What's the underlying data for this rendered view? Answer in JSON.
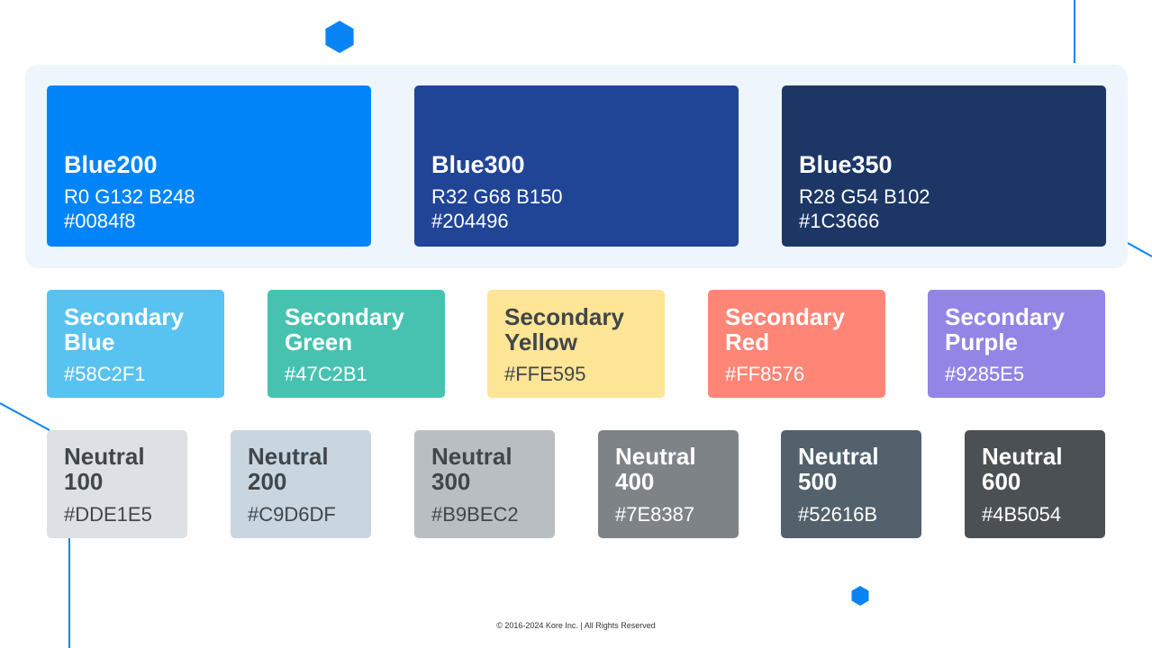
{
  "primary": [
    {
      "name": "Blue200",
      "rgb": "R0 G132 B248",
      "hex": "#0084f8"
    },
    {
      "name": "Blue300",
      "rgb": "R32 G68 B150",
      "hex": "#204496"
    },
    {
      "name": "Blue350",
      "rgb": "R28 G54 B102",
      "hex": "#1C3666"
    }
  ],
  "secondary": [
    {
      "name": "Secondary Blue",
      "hex": "#58C2F1"
    },
    {
      "name": "Secondary Green",
      "hex": "#47C2B1"
    },
    {
      "name": "Secondary Yellow",
      "hex": "#FFE595"
    },
    {
      "name": "Secondary Red",
      "hex": "#FF8576"
    },
    {
      "name": "Secondary Purple",
      "hex": "#9285E5"
    }
  ],
  "neutral": [
    {
      "name": "Neutral 100",
      "hex": "#DDE1E5"
    },
    {
      "name": "Neutral 200",
      "hex": "#C9D6DF"
    },
    {
      "name": "Neutral 300",
      "hex": "#B9BEC2"
    },
    {
      "name": "Neutral 400",
      "hex": "#7E8387"
    },
    {
      "name": "Neutral 500",
      "hex": "#52616B"
    },
    {
      "name": "Neutral 600",
      "hex": "#4B5054"
    }
  ],
  "footer": "© 2016-2024 Kore Inc. | All Rights Reserved"
}
